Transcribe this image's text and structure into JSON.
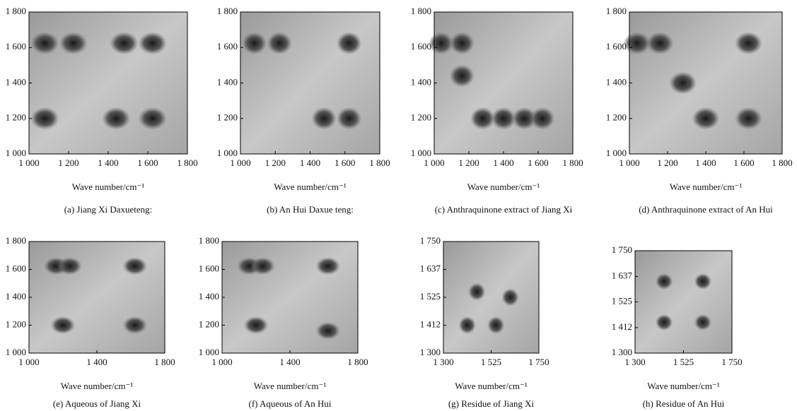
{
  "chart_data": [
    {
      "type": "contour",
      "caption": "(a) Jiang Xi Daxueteng:",
      "xlabel": "Wave number/cm⁻¹",
      "xlim": [
        1000,
        1800
      ],
      "ylim": [
        1000,
        1800
      ],
      "xticks": [
        {
          "value": 1000,
          "label": "1 000"
        },
        {
          "value": 1200,
          "label": "1 200"
        },
        {
          "value": 1400,
          "label": "1 400"
        },
        {
          "value": 1600,
          "label": "1 600"
        },
        {
          "value": 1800,
          "label": "1 800"
        }
      ],
      "yticks": [
        {
          "value": 1000,
          "label": "1 000"
        },
        {
          "value": 1200,
          "label": "1 200"
        },
        {
          "value": 1400,
          "label": "1 400"
        },
        {
          "value": 1600,
          "label": "1 600"
        },
        {
          "value": 1800,
          "label": "1 800"
        }
      ]
    },
    {
      "type": "contour",
      "caption": "(b) An Hui Daxue teng:",
      "xlabel": "Wave number/cm⁻¹",
      "xlim": [
        1000,
        1800
      ],
      "ylim": [
        1000,
        1800
      ],
      "xticks": [
        {
          "value": 1000,
          "label": "1 000"
        },
        {
          "value": 1200,
          "label": "1 200"
        },
        {
          "value": 1400,
          "label": "1 400"
        },
        {
          "value": 1600,
          "label": "1 600"
        },
        {
          "value": 1800,
          "label": "1 800"
        }
      ],
      "yticks": [
        {
          "value": 1000,
          "label": "1 000"
        },
        {
          "value": 1200,
          "label": "1 200"
        },
        {
          "value": 1400,
          "label": "1 400"
        },
        {
          "value": 1600,
          "label": "1 600"
        },
        {
          "value": 1800,
          "label": "1 800"
        }
      ]
    },
    {
      "type": "contour",
      "caption": "(c) Anthraquinone extract of Jiang Xi",
      "xlabel": "Wave number/cm⁻¹",
      "xlim": [
        1000,
        1800
      ],
      "ylim": [
        1000,
        1800
      ],
      "xticks": [
        {
          "value": 1000,
          "label": "1 000"
        },
        {
          "value": 1200,
          "label": "1 200"
        },
        {
          "value": 1400,
          "label": "1 400"
        },
        {
          "value": 1600,
          "label": "1 600"
        },
        {
          "value": 1800,
          "label": "1 800"
        }
      ],
      "yticks": [
        {
          "value": 1000,
          "label": "1 000"
        },
        {
          "value": 1200,
          "label": "1 200"
        },
        {
          "value": 1400,
          "label": "1 400"
        },
        {
          "value": 1600,
          "label": "1 600"
        },
        {
          "value": 1800,
          "label": "1 800"
        }
      ]
    },
    {
      "type": "contour",
      "caption": "(d) Anthraquinone extract of An Hui",
      "xlabel": "Wave number/cm⁻¹",
      "xlim": [
        1000,
        1800
      ],
      "ylim": [
        1000,
        1800
      ],
      "xticks": [
        {
          "value": 1000,
          "label": "1 000"
        },
        {
          "value": 1200,
          "label": "1 200"
        },
        {
          "value": 1400,
          "label": "1 400"
        },
        {
          "value": 1600,
          "label": "1 600"
        },
        {
          "value": 1800,
          "label": "1 800"
        }
      ],
      "yticks": [
        {
          "value": 1000,
          "label": "1 000"
        },
        {
          "value": 1200,
          "label": "1 200"
        },
        {
          "value": 1400,
          "label": "1 400"
        },
        {
          "value": 1600,
          "label": "1 600"
        },
        {
          "value": 1800,
          "label": "1 800"
        }
      ]
    },
    {
      "type": "contour",
      "caption": "(e) Aqueous of Jiang Xi",
      "xlabel": "Wave number/cm⁻¹",
      "xlim": [
        1000,
        1800
      ],
      "ylim": [
        1000,
        1800
      ],
      "xticks": [
        {
          "value": 1000,
          "label": "1 000"
        },
        {
          "value": 1400,
          "label": "1 400"
        },
        {
          "value": 1800,
          "label": "1 800"
        }
      ],
      "yticks": [
        {
          "value": 1000,
          "label": "1 000"
        },
        {
          "value": 1200,
          "label": "1 200"
        },
        {
          "value": 1400,
          "label": "1 400"
        },
        {
          "value": 1600,
          "label": "1 600"
        },
        {
          "value": 1800,
          "label": "1 800"
        }
      ]
    },
    {
      "type": "contour",
      "caption": "(f) Aqueous of An Hui",
      "xlabel": "Wave number/cm⁻¹",
      "xlim": [
        1000,
        1800
      ],
      "ylim": [
        1000,
        1800
      ],
      "xticks": [
        {
          "value": 1000,
          "label": "1 000"
        },
        {
          "value": 1400,
          "label": "1 400"
        },
        {
          "value": 1800,
          "label": "1 800"
        }
      ],
      "yticks": [
        {
          "value": 1000,
          "label": "1 000"
        },
        {
          "value": 1200,
          "label": "1 200"
        },
        {
          "value": 1400,
          "label": "1 400"
        },
        {
          "value": 1600,
          "label": "1 600"
        },
        {
          "value": 1800,
          "label": "1 800"
        }
      ]
    },
    {
      "type": "contour",
      "caption": "(g) Residue of Jiang Xi",
      "xlabel": "Wave number/cm⁻¹",
      "xlim": [
        1300,
        1750
      ],
      "ylim": [
        1300,
        1750
      ],
      "xticks": [
        {
          "value": 1300,
          "label": "1 300"
        },
        {
          "value": 1525,
          "label": "1 525"
        },
        {
          "value": 1750,
          "label": "1 750"
        }
      ],
      "yticks": [
        {
          "value": 1300,
          "label": "1 300"
        },
        {
          "value": 1412,
          "label": "1 412"
        },
        {
          "value": 1525,
          "label": "1 525"
        },
        {
          "value": 1637,
          "label": "1 637"
        },
        {
          "value": 1750,
          "label": "1 750"
        }
      ]
    },
    {
      "type": "contour",
      "caption": "(h) Residue of An Hui",
      "xlabel": "Wave number/cm⁻¹",
      "xlim": [
        1300,
        1750
      ],
      "ylim": [
        1300,
        1750
      ],
      "xticks": [
        {
          "value": 1300,
          "label": "1 300"
        },
        {
          "value": 1525,
          "label": "1 525"
        },
        {
          "value": 1750,
          "label": "1 750"
        }
      ],
      "yticks": [
        {
          "value": 1300,
          "label": "1 300"
        },
        {
          "value": 1412,
          "label": "1 412"
        },
        {
          "value": 1525,
          "label": "1 525"
        },
        {
          "value": 1637,
          "label": "1 637"
        },
        {
          "value": 1750,
          "label": "1 750"
        }
      ]
    }
  ]
}
